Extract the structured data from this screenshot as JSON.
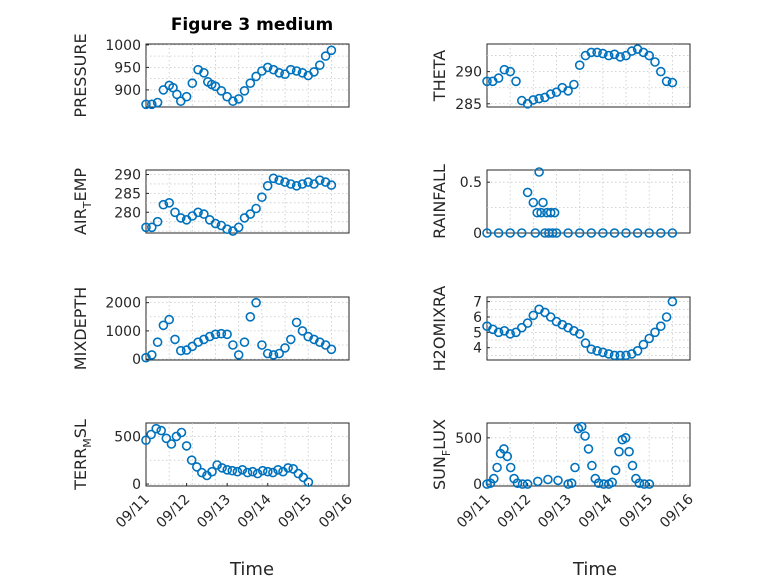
{
  "figure": {
    "title": "Figure 3 medium",
    "xlabel": "Time"
  },
  "colors": {
    "marker": "#0072BD",
    "axis": "#262626",
    "grid": "#c8c8c8"
  },
  "chart_data": [
    {
      "type": "scatter",
      "name": "pressure",
      "ylabel": {
        "main": "PRESSURE",
        "sub": ""
      },
      "ylim": [
        862,
        1002
      ],
      "yticks": [
        900,
        950,
        1000
      ],
      "ytick_labels": [
        "900",
        "950",
        "1000"
      ],
      "xlim": [
        "09/11",
        "09/15"
      ],
      "xticks": [],
      "grid": true,
      "x": [
        "09/11 00:00",
        "09/11 03:00",
        "09/11 06:00",
        "09/11 09:00",
        "09/11 12:00",
        "09/11 14:00",
        "09/11 16:00",
        "09/11 18:00",
        "09/11 21:00",
        "09/12 00:00",
        "09/12 03:00",
        "09/12 06:00",
        "09/12 08:00",
        "09/12 10:00",
        "09/12 12:00",
        "09/12 15:00",
        "09/12 18:00",
        "09/12 21:00",
        "09/13 00:00",
        "09/13 03:00",
        "09/13 06:00",
        "09/13 09:00",
        "09/13 12:00",
        "09/13 15:00",
        "09/13 18:00",
        "09/13 21:00",
        "09/14 00:00",
        "09/14 03:00",
        "09/14 06:00",
        "09/14 09:00",
        "09/14 12:00",
        "09/14 15:00",
        "09/14 18:00",
        "09/14 21:00",
        "09/15 00:00"
      ],
      "y": [
        868,
        868,
        872,
        900,
        910,
        905,
        890,
        875,
        885,
        915,
        945,
        938,
        918,
        912,
        908,
        898,
        885,
        875,
        880,
        898,
        915,
        930,
        942,
        950,
        945,
        938,
        935,
        945,
        942,
        938,
        932,
        940,
        955,
        975,
        988
      ]
    },
    {
      "type": "scatter",
      "name": "theta",
      "ylabel": {
        "main": "THETA",
        "sub": ""
      },
      "ylim": [
        284.5,
        294.3
      ],
      "yticks": [
        285,
        290
      ],
      "ytick_labels": [
        "285",
        "290"
      ],
      "xlim": [
        "09/11",
        "09/15"
      ],
      "xticks": [],
      "grid": true,
      "x": [
        "09/11 00:00",
        "09/11 03:00",
        "09/11 06:00",
        "09/11 09:00",
        "09/11 12:00",
        "09/11 15:00",
        "09/11 18:00",
        "09/11 21:00",
        "09/12 00:00",
        "09/12 03:00",
        "09/12 06:00",
        "09/12 09:00",
        "09/12 12:00",
        "09/12 15:00",
        "09/12 18:00",
        "09/12 21:00",
        "09/13 00:00",
        "09/13 03:00",
        "09/13 06:00",
        "09/13 09:00",
        "09/13 12:00",
        "09/13 15:00",
        "09/13 18:00",
        "09/13 21:00",
        "09/14 00:00",
        "09/14 03:00",
        "09/14 06:00",
        "09/14 09:00",
        "09/14 12:00",
        "09/14 15:00",
        "09/14 18:00",
        "09/14 21:00",
        "09/15 00:00"
      ],
      "y": [
        288.5,
        288.5,
        289,
        290.3,
        290,
        288.5,
        285.5,
        285,
        285.6,
        285.8,
        286,
        286.5,
        286.8,
        287.5,
        287,
        288,
        291,
        292.5,
        293,
        293,
        292.8,
        292.5,
        292.7,
        292.3,
        292.5,
        293.2,
        293.5,
        293,
        292.5,
        291.5,
        290,
        288.5,
        288.3
      ]
    },
    {
      "type": "scatter",
      "name": "air_temp",
      "ylabel": {
        "main": "AIR",
        "sub": "T",
        "rest": "EMP"
      },
      "ylim": [
        274.5,
        291.2
      ],
      "yticks": [
        280,
        285,
        290
      ],
      "ytick_labels": [
        "280",
        "285",
        "290"
      ],
      "xlim": [
        "09/11",
        "09/15"
      ],
      "xticks": [],
      "grid": true,
      "x": [
        "09/11 00:00",
        "09/11 03:00",
        "09/11 06:00",
        "09/11 09:00",
        "09/11 12:00",
        "09/11 15:00",
        "09/11 18:00",
        "09/11 21:00",
        "09/12 00:00",
        "09/12 03:00",
        "09/12 06:00",
        "09/12 09:00",
        "09/12 12:00",
        "09/12 15:00",
        "09/12 18:00",
        "09/12 21:00",
        "09/13 00:00",
        "09/13 03:00",
        "09/13 06:00",
        "09/13 09:00",
        "09/13 12:00",
        "09/13 15:00",
        "09/13 18:00",
        "09/13 21:00",
        "09/14 00:00",
        "09/14 03:00",
        "09/14 06:00",
        "09/14 09:00",
        "09/14 12:00",
        "09/14 15:00",
        "09/14 18:00",
        "09/14 21:00",
        "09/15 00:00"
      ],
      "y": [
        276,
        276,
        277.5,
        282,
        282.5,
        280,
        278.5,
        278,
        279,
        280,
        279.5,
        278,
        277,
        276.5,
        275.5,
        275,
        276,
        278.5,
        279.5,
        281,
        284,
        287,
        289,
        288.5,
        288,
        287.5,
        287,
        287.5,
        288,
        287.5,
        288.5,
        288,
        287.2
      ]
    },
    {
      "type": "scatter",
      "name": "rainfall",
      "ylabel": {
        "main": "RAINFALL",
        "sub": ""
      },
      "ylim": [
        0,
        0.62
      ],
      "yticks": [
        0,
        0.5
      ],
      "ytick_labels": [
        "0",
        "0.5"
      ],
      "xlim": [
        "09/11",
        "09/15"
      ],
      "xticks": [],
      "grid": true,
      "x": [
        "09/11 00:00",
        "09/11 06:00",
        "09/11 12:00",
        "09/11 18:00",
        "09/11 21:00",
        "09/12 00:00",
        "09/12 01:00",
        "09/12 02:00",
        "09/12 03:00",
        "09/12 04:00",
        "09/12 05:00",
        "09/12 06:00",
        "09/12 07:00",
        "09/12 08:00",
        "09/12 09:00",
        "09/12 10:00",
        "09/12 11:00",
        "09/12 12:00",
        "09/12 18:00",
        "09/13 00:00",
        "09/13 06:00",
        "09/13 12:00",
        "09/13 18:00",
        "09/14 00:00",
        "09/14 06:00",
        "09/14 12:00",
        "09/14 18:00",
        "09/15 00:00"
      ],
      "y": [
        0,
        0,
        0,
        0,
        0.4,
        0.3,
        0,
        0.2,
        0.6,
        0.2,
        0.3,
        0,
        0.2,
        0,
        0.2,
        0,
        0.2,
        0,
        0,
        0,
        0,
        0,
        0,
        0,
        0,
        0,
        0,
        0
      ]
    },
    {
      "type": "scatter",
      "name": "mixdepth",
      "ylabel": {
        "main": "MIXDEPTH",
        "sub": ""
      },
      "ylim": [
        -30,
        2200
      ],
      "yticks": [
        0,
        1000,
        2000
      ],
      "ytick_labels": [
        "0",
        "1000",
        "2000"
      ],
      "xlim": [
        "09/11",
        "09/15"
      ],
      "xticks": [],
      "grid": true,
      "x": [
        "09/11 00:00",
        "09/11 03:00",
        "09/11 06:00",
        "09/11 09:00",
        "09/11 12:00",
        "09/11 15:00",
        "09/11 18:00",
        "09/11 21:00",
        "09/12 00:00",
        "09/12 03:00",
        "09/12 06:00",
        "09/12 09:00",
        "09/12 12:00",
        "09/12 15:00",
        "09/12 18:00",
        "09/12 21:00",
        "09/13 00:00",
        "09/13 03:00",
        "09/13 06:00",
        "09/13 09:00",
        "09/13 12:00",
        "09/13 15:00",
        "09/13 18:00",
        "09/13 21:00",
        "09/14 00:00",
        "09/14 03:00",
        "09/14 06:00",
        "09/14 09:00",
        "09/14 12:00",
        "09/14 15:00",
        "09/14 18:00",
        "09/14 21:00",
        "09/15 00:00"
      ],
      "y": [
        50,
        150,
        600,
        1200,
        1400,
        700,
        300,
        320,
        450,
        600,
        700,
        800,
        880,
        900,
        880,
        500,
        150,
        600,
        1500,
        2000,
        500,
        200,
        150,
        200,
        400,
        700,
        1300,
        1000,
        800,
        700,
        600,
        500,
        350
      ]
    },
    {
      "type": "scatter",
      "name": "h2omixra",
      "ylabel": {
        "main": "H2OMIXRA",
        "sub": ""
      },
      "ylim": [
        3.2,
        7.3
      ],
      "yticks": [
        4,
        5,
        6,
        7
      ],
      "ytick_labels": [
        "4",
        "5",
        "6",
        "7"
      ],
      "xlim": [
        "09/11",
        "09/15"
      ],
      "xticks": [],
      "grid": true,
      "x": [
        "09/11 00:00",
        "09/11 03:00",
        "09/11 06:00",
        "09/11 09:00",
        "09/11 12:00",
        "09/11 15:00",
        "09/11 18:00",
        "09/11 21:00",
        "09/12 00:00",
        "09/12 03:00",
        "09/12 06:00",
        "09/12 09:00",
        "09/12 12:00",
        "09/12 15:00",
        "09/12 18:00",
        "09/12 21:00",
        "09/13 00:00",
        "09/13 03:00",
        "09/13 06:00",
        "09/13 09:00",
        "09/13 12:00",
        "09/13 15:00",
        "09/13 18:00",
        "09/13 21:00",
        "09/14 00:00",
        "09/14 03:00",
        "09/14 06:00",
        "09/14 09:00",
        "09/14 12:00",
        "09/14 15:00",
        "09/14 18:00",
        "09/14 21:00",
        "09/15 00:00"
      ],
      "y": [
        5.4,
        5.2,
        5.0,
        5.1,
        4.9,
        5.0,
        5.3,
        5.6,
        6.1,
        6.5,
        6.3,
        6.0,
        5.7,
        5.5,
        5.3,
        5.1,
        4.9,
        4.3,
        3.9,
        3.8,
        3.7,
        3.6,
        3.5,
        3.5,
        3.5,
        3.6,
        3.8,
        4.2,
        4.6,
        5.0,
        5.4,
        6.0,
        7.0
      ]
    },
    {
      "type": "scatter",
      "name": "terr_msl",
      "ylabel": {
        "main": "TERR",
        "sub": "M",
        "rest": "SL"
      },
      "ylim": [
        -20,
        640
      ],
      "yticks": [
        0,
        500
      ],
      "ytick_labels": [
        "0",
        "500"
      ],
      "xlim": [
        "09/11",
        "09/16"
      ],
      "xticks": [
        "09/11",
        "09/12",
        "09/13",
        "09/14",
        "09/15",
        "09/16"
      ],
      "grid": true,
      "x": [
        "09/11 00:00",
        "09/11 03:00",
        "09/11 06:00",
        "09/11 09:00",
        "09/11 12:00",
        "09/11 15:00",
        "09/11 18:00",
        "09/11 21:00",
        "09/12 00:00",
        "09/12 03:00",
        "09/12 06:00",
        "09/12 09:00",
        "09/12 12:00",
        "09/12 15:00",
        "09/12 18:00",
        "09/12 21:00",
        "09/13 00:00",
        "09/13 03:00",
        "09/13 06:00",
        "09/13 09:00",
        "09/13 12:00",
        "09/13 15:00",
        "09/13 18:00",
        "09/13 21:00",
        "09/14 00:00",
        "09/14 03:00",
        "09/14 06:00",
        "09/14 09:00",
        "09/14 12:00",
        "09/14 15:00",
        "09/14 18:00",
        "09/14 21:00",
        "09/15 00:00"
      ],
      "y": [
        460,
        520,
        580,
        560,
        480,
        420,
        500,
        540,
        400,
        250,
        180,
        120,
        90,
        130,
        200,
        170,
        150,
        140,
        130,
        150,
        120,
        130,
        110,
        140,
        130,
        120,
        150,
        130,
        170,
        160,
        110,
        70,
        20
      ]
    },
    {
      "type": "scatter",
      "name": "sun_flux",
      "ylabel": {
        "main": "SUN",
        "sub": "F",
        "rest": "LUX"
      },
      "ylim": [
        -20,
        660
      ],
      "yticks": [
        0,
        500
      ],
      "ytick_labels": [
        "0",
        "500"
      ],
      "xlim": [
        "09/11",
        "09/16"
      ],
      "xticks": [
        "09/11",
        "09/12",
        "09/13",
        "09/14",
        "09/15",
        "09/16"
      ],
      "grid": true,
      "x": [
        "09/11 00:00",
        "09/11 02:00",
        "09/11 04:00",
        "09/11 06:00",
        "09/11 08:00",
        "09/11 10:00",
        "09/11 12:00",
        "09/11 14:00",
        "09/11 16:00",
        "09/11 18:00",
        "09/11 21:00",
        "09/12 00:00",
        "09/12 06:00",
        "09/12 12:00",
        "09/12 18:00",
        "09/13 00:00",
        "09/13 02:00",
        "09/13 04:00",
        "09/13 06:00",
        "09/13 08:00",
        "09/13 10:00",
        "09/13 12:00",
        "09/13 14:00",
        "09/13 16:00",
        "09/13 18:00",
        "09/13 21:00",
        "09/14 00:00",
        "09/14 02:00",
        "09/14 04:00",
        "09/14 06:00",
        "09/14 08:00",
        "09/14 10:00",
        "09/14 12:00",
        "09/14 14:00",
        "09/14 16:00",
        "09/14 18:00",
        "09/14 21:00",
        "09/15 00:00"
      ],
      "y": [
        0,
        10,
        60,
        180,
        330,
        380,
        300,
        180,
        60,
        10,
        0,
        0,
        30,
        50,
        40,
        0,
        10,
        180,
        600,
        620,
        520,
        380,
        200,
        60,
        10,
        0,
        0,
        20,
        150,
        350,
        480,
        500,
        350,
        200,
        60,
        10,
        0,
        0
      ]
    }
  ]
}
